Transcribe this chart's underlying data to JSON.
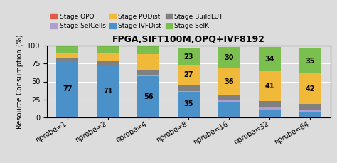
{
  "title": "FPGA,SIFT100M,OPQ+IVF8192",
  "ylabel": "Resource Consumption (%)",
  "categories": [
    "nprobe=1",
    "nprobe=2",
    "nprobe=4",
    "nprobe=8",
    "nprobe=16",
    "nprobe=32",
    "nprobe=64"
  ],
  "stages": [
    "Stage OPQ",
    "Stage IVFDist",
    "Stage SelCells",
    "Stage BuildLUT",
    "Stage PQDist",
    "Stage SelK"
  ],
  "colors": [
    "#e05c4a",
    "#4a90c9",
    "#b09ed0",
    "#808080",
    "#f0b93a",
    "#7bbf4e"
  ],
  "data": {
    "Stage OPQ": [
      1,
      1,
      1,
      1,
      1,
      1,
      1
    ],
    "Stage IVFDist": [
      77,
      71,
      56,
      35,
      21,
      9,
      7
    ],
    "Stage SelCells": [
      1,
      1,
      1,
      1,
      2,
      5,
      3
    ],
    "Stage BuildLUT": [
      3,
      5,
      8,
      9,
      8,
      8,
      8
    ],
    "Stage PQDist": [
      7,
      11,
      22,
      27,
      36,
      41,
      42
    ],
    "Stage SelK": [
      11,
      11,
      12,
      23,
      30,
      34,
      35
    ]
  },
  "text_labels": {
    "Stage IVFDist": [
      "77",
      "71",
      "56",
      "35",
      "",
      "",
      ""
    ],
    "Stage PQDist": [
      "",
      "",
      "",
      "27",
      "36",
      "41",
      "42"
    ],
    "Stage SelK": [
      "",
      "",
      "",
      "23",
      "30",
      "34",
      "35"
    ]
  },
  "ylim": [
    0,
    100
  ],
  "yticks": [
    0,
    25,
    50,
    75,
    100
  ],
  "background_color": "#dcdcdc",
  "plot_bg_color": "#dcdcdc",
  "figsize": [
    4.74,
    2.29
  ],
  "dpi": 100,
  "legend_order": [
    0,
    2,
    4,
    1,
    3,
    5
  ],
  "title_fontsize": 9,
  "label_fontsize": 7,
  "tick_fontsize": 7,
  "ylabel_fontsize": 7,
  "legend_fontsize": 6.5
}
